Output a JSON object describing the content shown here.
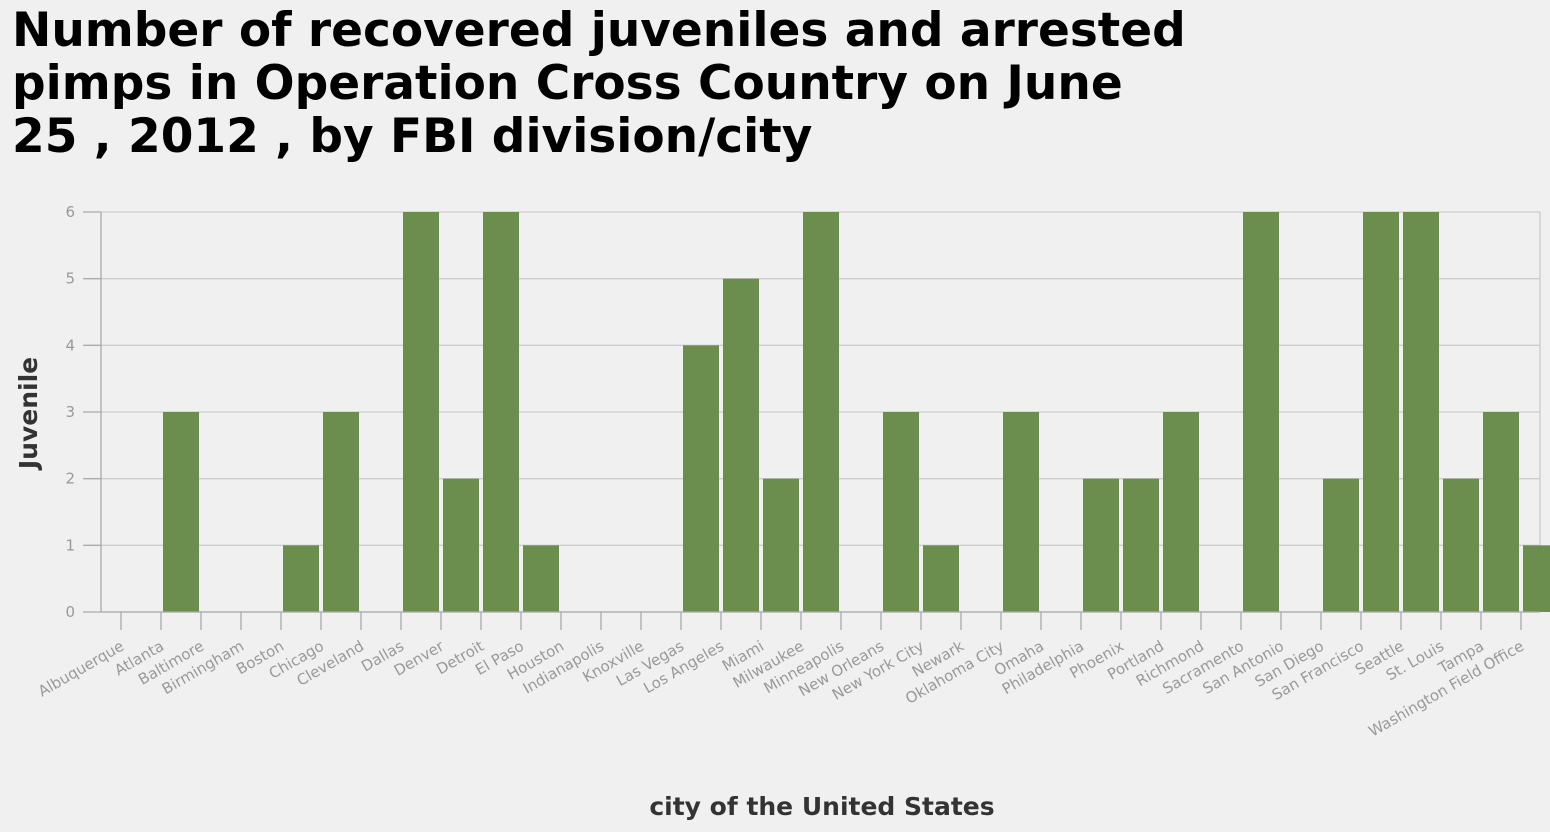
{
  "chart_data": {
    "type": "bar",
    "title_lines": [
      "Number of recovered juveniles and arrested",
      "pimps in Operation Cross Country on June",
      "25 , 2012 , by FBI division/city"
    ],
    "xlabel": "city of the United States",
    "ylabel": "Juvenile",
    "ylim": [
      0,
      6
    ],
    "yticks": [
      0,
      1,
      2,
      3,
      4,
      5,
      6
    ],
    "grid": true,
    "bar_color": "#6b8e4e",
    "categories": [
      "Albuquerque",
      "Atlanta",
      "Baltimore",
      "Birmingham",
      "Boston",
      "Chicago",
      "Cleveland",
      "Dallas",
      "Denver",
      "Detroit",
      "El Paso",
      "Houston",
      "Indianapolis",
      "Knoxville",
      "Las Vegas",
      "Los Angeles",
      "Miami",
      "Milwaukee",
      "Minneapolis",
      "New Orleans",
      "New York City",
      "Newark",
      "Oklahoma City",
      "Omaha",
      "Philadelphia",
      "Phoenix",
      "Portland",
      "Richmond",
      "Sacramento",
      "San Antonio",
      "San Diego",
      "San Francisco",
      "Seattle",
      "St. Louis",
      "Tampa",
      "Washington Field Office"
    ],
    "values": [
      0,
      3,
      0,
      0,
      1,
      3,
      0,
      6,
      2,
      6,
      1,
      0,
      0,
      0,
      4,
      5,
      2,
      6,
      0,
      3,
      1,
      0,
      3,
      0,
      2,
      2,
      3,
      0,
      6,
      0,
      2,
      6,
      6,
      2,
      3,
      1
    ]
  }
}
